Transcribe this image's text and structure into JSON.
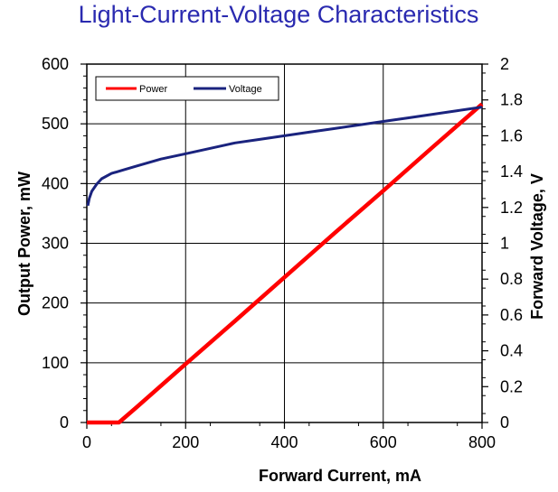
{
  "chart_data": {
    "type": "line",
    "title": "Light-Current-Voltage Characteristics",
    "xlabel": "Forward Current, mA",
    "ylabel": "Output Power, mW",
    "y2label": "Forward Voltage, V",
    "xlim": [
      0,
      800
    ],
    "ylim": [
      0,
      600
    ],
    "y2lim": [
      0,
      2
    ],
    "x_ticks": [
      0,
      200,
      400,
      600,
      800
    ],
    "y_ticks": [
      0,
      100,
      200,
      300,
      400,
      500,
      600
    ],
    "y2_ticks": [
      0,
      0.2,
      0.4,
      0.6,
      0.8,
      1,
      1.2,
      1.4,
      1.6,
      1.8,
      2
    ],
    "x_tick_labels": [
      "0",
      "200",
      "400",
      "600",
      "800"
    ],
    "y_tick_labels": [
      "0",
      "100",
      "200",
      "300",
      "400",
      "500",
      "600"
    ],
    "y2_tick_labels": [
      "0",
      "0.2",
      "0.4",
      "0.6",
      "0.8",
      "1",
      "1.2",
      "1.4",
      "1.6",
      "1.8",
      "2"
    ],
    "grid": true,
    "legend_position": "top-left",
    "series": [
      {
        "name": "Power",
        "axis": "left",
        "color": "#ff0000",
        "x": [
          0,
          65,
          100,
          200,
          300,
          400,
          500,
          600,
          700,
          800
        ],
        "y": [
          0,
          0,
          25,
          98,
          170,
          243,
          316,
          388,
          461,
          533
        ]
      },
      {
        "name": "Voltage",
        "axis": "right",
        "color": "#1a237e",
        "x": [
          2,
          5,
          10,
          20,
          30,
          50,
          75,
          100,
          150,
          200,
          250,
          300,
          350,
          400,
          450,
          500,
          550,
          600,
          650,
          700,
          750,
          800
        ],
        "y": [
          1.21,
          1.25,
          1.29,
          1.33,
          1.36,
          1.39,
          1.41,
          1.43,
          1.47,
          1.5,
          1.53,
          1.56,
          1.58,
          1.6,
          1.62,
          1.64,
          1.66,
          1.68,
          1.7,
          1.72,
          1.74,
          1.76
        ]
      }
    ]
  }
}
